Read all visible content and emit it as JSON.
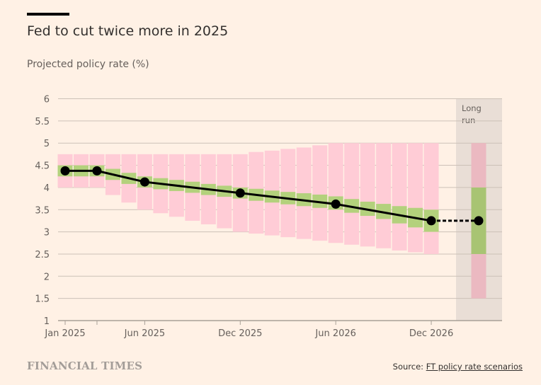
{
  "header": {
    "title": "Fed to cut twice more in 2025",
    "subtitle": "Projected policy rate (%)"
  },
  "footer": {
    "brand": "FINANCIAL TIMES",
    "source_prefix": "Source: ",
    "source_link": "FT policy rate scenarios"
  },
  "colors": {
    "background": "#fff1e5",
    "outer_range": "#ffccd6",
    "inner_range": "#b3d17c",
    "long_run_panel": "#e9ded6",
    "long_run_outer": "#ebb9c1",
    "long_run_inner": "#a8c473",
    "line": "#000000",
    "grid": "#ccc1b7"
  },
  "chart_data": {
    "type": "bar",
    "title": "Fed to cut twice more in 2025",
    "subtitle": "Projected policy rate (%)",
    "xlabel": "",
    "ylabel": "Projected policy rate (%)",
    "ylim": [
      1,
      6
    ],
    "yticks": [
      1,
      1.5,
      2,
      2.5,
      3,
      3.5,
      4,
      4.5,
      5,
      5.5,
      6
    ],
    "ytick_labels": [
      "1",
      "1.5",
      "2",
      "2.5",
      "3",
      "3.5",
      "4",
      "4.5",
      "5",
      "5.5",
      "6"
    ],
    "grid": true,
    "xtick_labels": [
      {
        "month_index": 0,
        "label": "Jan 2025"
      },
      {
        "month_index": 2,
        "label": ""
      },
      {
        "month_index": 5,
        "label": "Jun 2025"
      },
      {
        "month_index": 11,
        "label": "Dec 2025"
      },
      {
        "month_index": 17,
        "label": "Jun 2026"
      },
      {
        "month_index": 23,
        "label": "Dec 2026"
      }
    ],
    "categories": [
      "Jan 2025",
      "Feb 2025",
      "Mar 2025",
      "Apr 2025",
      "May 2025",
      "Jun 2025",
      "Jul 2025",
      "Aug 2025",
      "Sep 2025",
      "Oct 2025",
      "Nov 2025",
      "Dec 2025",
      "Jan 2026",
      "Feb 2026",
      "Mar 2026",
      "Apr 2026",
      "May 2026",
      "Jun 2026",
      "Jul 2026",
      "Aug 2026",
      "Sep 2026",
      "Oct 2026",
      "Nov 2026",
      "Dec 2026"
    ],
    "series": [
      {
        "name": "Outer range high",
        "values": [
          4.75,
          4.75,
          4.75,
          4.75,
          4.75,
          4.75,
          4.75,
          4.75,
          4.75,
          4.75,
          4.75,
          4.75,
          4.8,
          4.83,
          4.87,
          4.9,
          4.95,
          5.0,
          5.0,
          5.0,
          5.0,
          5.0,
          5.0,
          5.0
        ]
      },
      {
        "name": "Outer range low",
        "values": [
          4.0,
          4.0,
          4.0,
          3.83,
          3.66,
          3.5,
          3.42,
          3.34,
          3.25,
          3.17,
          3.08,
          3.0,
          2.96,
          2.92,
          2.88,
          2.84,
          2.8,
          2.75,
          2.71,
          2.67,
          2.63,
          2.58,
          2.54,
          2.5
        ]
      },
      {
        "name": "Inner range high",
        "values": [
          4.5,
          4.5,
          4.5,
          4.42,
          4.33,
          4.25,
          4.21,
          4.17,
          4.13,
          4.08,
          4.04,
          4.0,
          3.97,
          3.93,
          3.9,
          3.87,
          3.84,
          3.8,
          3.74,
          3.68,
          3.63,
          3.58,
          3.54,
          3.5
        ]
      },
      {
        "name": "Inner range low",
        "values": [
          4.25,
          4.25,
          4.25,
          4.17,
          4.08,
          4.0,
          3.96,
          3.92,
          3.88,
          3.83,
          3.79,
          3.75,
          3.7,
          3.66,
          3.62,
          3.58,
          3.54,
          3.5,
          3.43,
          3.36,
          3.29,
          3.19,
          3.1,
          3.0
        ]
      },
      {
        "name": "Central projection",
        "values": [
          4.375,
          4.375,
          4.375,
          4.29,
          4.21,
          4.125,
          4.083,
          4.042,
          4.0,
          3.958,
          3.917,
          3.875,
          3.833,
          3.792,
          3.75,
          3.708,
          3.667,
          3.625,
          3.563,
          3.5,
          3.438,
          3.375,
          3.313,
          3.25
        ]
      }
    ],
    "markers": [
      {
        "month_index": 0,
        "value": 4.375
      },
      {
        "month_index": 2,
        "value": 4.375
      },
      {
        "month_index": 5,
        "value": 4.125
      },
      {
        "month_index": 11,
        "value": 3.875
      },
      {
        "month_index": 17,
        "value": 3.625
      },
      {
        "month_index": 23,
        "value": 3.25
      }
    ],
    "long_run": {
      "label_line1": "Long",
      "label_line2": "run",
      "outer_high": 5.0,
      "outer_low": 1.5,
      "inner_high": 4.0,
      "inner_low": 2.5,
      "central": 3.25
    }
  }
}
